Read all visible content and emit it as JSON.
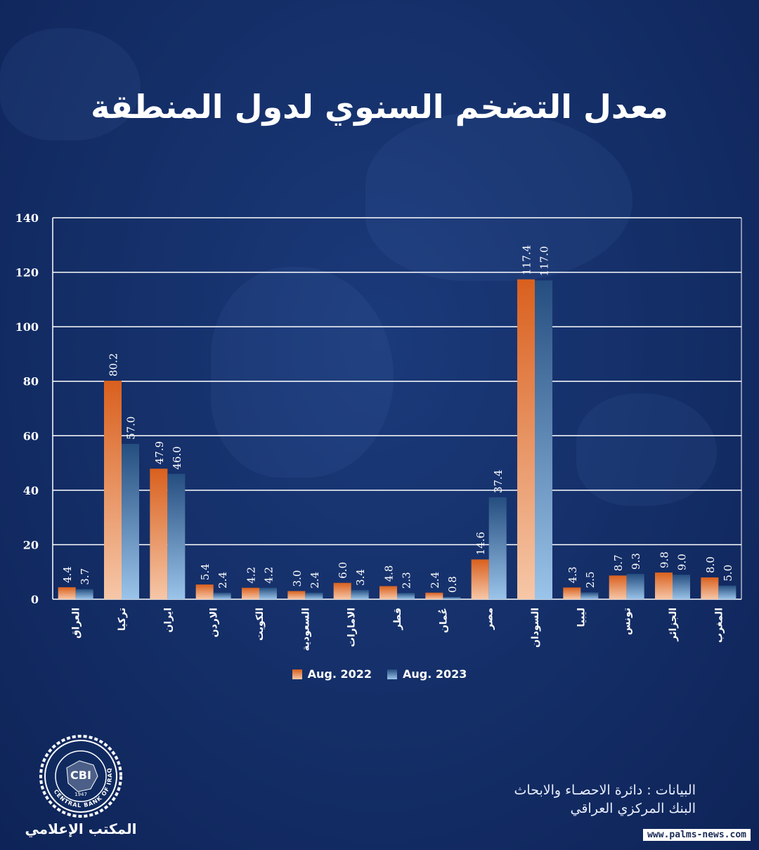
{
  "title": "معدل التضخم السنوي لدول المنطقة",
  "chart_data": {
    "type": "bar",
    "categories": [
      "العراق",
      "تركيا",
      "ايران",
      "الاردن",
      "الكويت",
      "السعودية",
      "الامارات",
      "قطر",
      "عُمان",
      "مصر",
      "السودان",
      "ليبيا",
      "تونس",
      "الجزائر",
      "المغرب"
    ],
    "series": [
      {
        "name": "Aug. 2022",
        "values": [
          4.4,
          80.2,
          47.9,
          5.4,
          4.2,
          3.0,
          6.0,
          4.8,
          2.4,
          14.6,
          117.4,
          4.3,
          8.7,
          9.8,
          8.0
        ]
      },
      {
        "name": "Aug. 2023",
        "values": [
          3.7,
          57.0,
          46.0,
          2.4,
          4.2,
          2.4,
          3.4,
          2.3,
          0.8,
          37.4,
          117.0,
          2.5,
          9.3,
          9.0,
          5.0
        ]
      }
    ],
    "ylim": [
      0,
      140
    ],
    "yticks": [
      0,
      20,
      40,
      60,
      80,
      100,
      120,
      140
    ],
    "grid": true,
    "legend": "bottom",
    "colors": {
      "series_1_top": "#d9601e",
      "series_1_bottom": "#f6c7a8",
      "series_2_top": "#254e80",
      "series_2_bottom": "#9bc4ea",
      "grid": "#ffffff"
    }
  },
  "logo": {
    "text": "CBI",
    "ring_text": "CENTRAL BANK OF IRAQ",
    "year": "1947"
  },
  "logo_caption": "المكتب الإعلامي",
  "source": {
    "line1": "البيانات : دائرة الاحصـاء والابحاث",
    "line2": "البنك المركزي العراقي"
  },
  "watermark": "www.palms-news.com"
}
